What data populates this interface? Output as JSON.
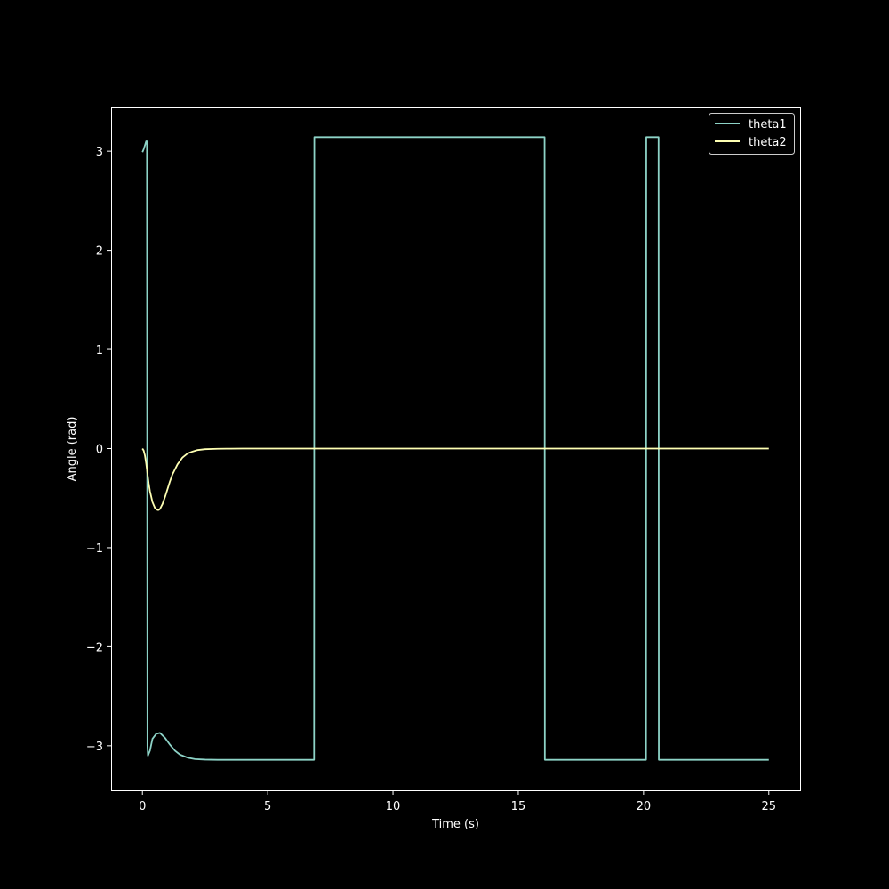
{
  "colors": {
    "background": "#000000",
    "foreground": "#ffffff",
    "theta1": "#8dd3c7",
    "theta2": "#feffb3"
  },
  "chart_data": {
    "type": "line",
    "title": "",
    "xlabel": "Time (s)",
    "ylabel": "Angle (rad)",
    "xlim": [
      -1.25,
      26.25
    ],
    "ylim": [
      -3.45,
      3.45
    ],
    "xticks": [
      0,
      5,
      10,
      15,
      20,
      25
    ],
    "xtick_labels": [
      "0",
      "5",
      "10",
      "15",
      "20",
      "25"
    ],
    "yticks": [
      -3,
      -2,
      -1,
      0,
      1,
      2,
      3
    ],
    "ytick_labels": [
      "−3",
      "−2",
      "−1",
      "0",
      "1",
      "2",
      "3"
    ],
    "grid": false,
    "legend": {
      "position": "top-right",
      "entries": [
        "theta1",
        "theta2"
      ]
    },
    "series": [
      {
        "name": "theta1",
        "color": "#8dd3c7",
        "x": [
          0,
          0.05,
          0.1,
          0.15,
          0.18,
          0.2,
          0.22,
          0.3,
          0.4,
          0.55,
          0.7,
          0.9,
          1.1,
          1.3,
          1.5,
          1.8,
          2.1,
          2.5,
          3.0,
          3.5,
          4.0,
          5.0,
          6.0,
          6.85,
          6.86,
          7.0,
          10.0,
          15.0,
          16.0,
          16.05,
          16.06,
          18.0,
          20.1,
          20.11,
          20.6,
          20.61,
          23.0,
          25.0
        ],
        "y": [
          2.99,
          3.02,
          3.06,
          3.1,
          3.1,
          -3.0,
          -3.1,
          -3.05,
          -2.93,
          -2.88,
          -2.87,
          -2.92,
          -2.99,
          -3.05,
          -3.09,
          -3.12,
          -3.135,
          -3.14,
          -3.142,
          -3.142,
          -3.142,
          -3.142,
          -3.142,
          -3.142,
          3.142,
          3.142,
          3.142,
          3.142,
          3.142,
          3.142,
          -3.142,
          -3.142,
          -3.142,
          3.142,
          3.142,
          -3.142,
          -3.142,
          -3.142
        ]
      },
      {
        "name": "theta2",
        "color": "#feffb3",
        "x": [
          0,
          0.05,
          0.1,
          0.15,
          0.2,
          0.25,
          0.3,
          0.4,
          0.5,
          0.6,
          0.65,
          0.7,
          0.8,
          0.9,
          1.0,
          1.1,
          1.2,
          1.4,
          1.6,
          1.8,
          2.0,
          2.2,
          2.5,
          3.0,
          3.5,
          4.0,
          5.0,
          10.0,
          15.0,
          20.0,
          25.0
        ],
        "y": [
          0.0,
          -0.02,
          -0.07,
          -0.15,
          -0.25,
          -0.35,
          -0.43,
          -0.54,
          -0.6,
          -0.62,
          -0.62,
          -0.61,
          -0.56,
          -0.49,
          -0.41,
          -0.33,
          -0.26,
          -0.16,
          -0.09,
          -0.05,
          -0.03,
          -0.015,
          -0.006,
          -0.002,
          -0.001,
          0.0,
          0.0,
          0.0,
          0.0,
          0.0,
          0.0
        ]
      }
    ]
  }
}
